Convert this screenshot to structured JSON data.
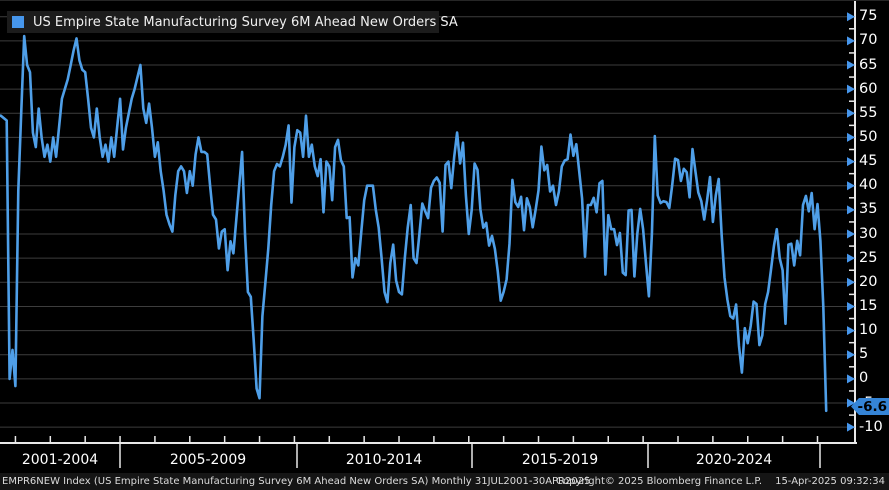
{
  "legend": {
    "label": "US Empire State Manufacturing Survey 6M Ahead New Orders SA",
    "swatch_color": "#4696ec"
  },
  "y_axis": {
    "ticks": [
      75,
      70,
      65,
      60,
      55,
      50,
      45,
      40,
      35,
      30,
      25,
      20,
      15,
      10,
      5,
      0,
      -5,
      -10
    ],
    "minor_tick_step": 2.5,
    "current_value_label": "-6.6"
  },
  "x_axis": {
    "period_labels": [
      "2001-2004",
      "2005-2009",
      "2010-2014",
      "2015-2019",
      "2020-2024"
    ]
  },
  "footer": {
    "left": "EMPR6NEW Index (US Empire State Manufacturing Survey 6M Ahead New Orders SA)  Monthly 31JUL2001-30APR2025",
    "center": "Copyright© 2025 Bloomberg Finance L.P.",
    "right": "15-Apr-2025 09:32:34"
  },
  "colors": {
    "line": "#4f9fe8",
    "tag_background": "#3584d6",
    "grid": "#3d3d3d",
    "axis": "#e8e8e8",
    "arrow": "#4696ec"
  },
  "chart_data": {
    "type": "line",
    "title": "US Empire State Manufacturing Survey 6M Ahead New Orders SA",
    "ticker": "EMPR6NEW Index",
    "frequency": "monthly",
    "x_start": "2001-07",
    "x_end": "2025-04",
    "ylim": [
      -10,
      75
    ],
    "grid": "horizontal",
    "legend_position": "top-left",
    "last_value": -6.6,
    "series": [
      {
        "name": "US Empire State Manufacturing Survey 6M Ahead New Orders SA",
        "values": [
          54.5,
          54.5,
          54,
          53.5,
          0,
          6,
          -1.5,
          39,
          55,
          71,
          65,
          63.5,
          51,
          48,
          56,
          50,
          46,
          48.5,
          45,
          50,
          46,
          52,
          58,
          60,
          62,
          65,
          68,
          70.5,
          66,
          64,
          63.5,
          58,
          52,
          50,
          56,
          50,
          46,
          48.5,
          45,
          50,
          46,
          52,
          58,
          47.5,
          52,
          55,
          58,
          60,
          62.5,
          65,
          56,
          53,
          57,
          52,
          46,
          49,
          43,
          39,
          34,
          32,
          30.5,
          38,
          43,
          44,
          43,
          38.5,
          43,
          40,
          46.5,
          50,
          47,
          47,
          46.5,
          40,
          34,
          33,
          27,
          30.5,
          31,
          22.5,
          28.5,
          26,
          33,
          40,
          47,
          30,
          18,
          17,
          8,
          -2,
          -4,
          13,
          20,
          27,
          36,
          43,
          44.5,
          44,
          46,
          48.5,
          52.5,
          36.5,
          48,
          51.5,
          51,
          46,
          54.5,
          46,
          48.5,
          44,
          42,
          45.5,
          34.5,
          45,
          44,
          37,
          48,
          49.5,
          45.3,
          44,
          33.3,
          33.5,
          21,
          25,
          23.5,
          30.5,
          37,
          40,
          40,
          40,
          35,
          31.3,
          25,
          18,
          15.9,
          24,
          27.8,
          20.4,
          18,
          17.5,
          25,
          31.3,
          36,
          25,
          24,
          30,
          36.3,
          34.7,
          33.3,
          39.6,
          41,
          41.7,
          40.6,
          30.5,
          44.3,
          45,
          39.5,
          46,
          51,
          44.6,
          48.9,
          38,
          30,
          35,
          44.6,
          43.3,
          35.1,
          31.3,
          32.3,
          27.6,
          29.6,
          26.9,
          22.2,
          16.2,
          18,
          20.6,
          28,
          41.2,
          36.6,
          35.6,
          37.7,
          30.8,
          37.4,
          35.6,
          31.4,
          35,
          39,
          48.1,
          43.2,
          44.3,
          38.8,
          40,
          36,
          38.8,
          44,
          45.2,
          45.5,
          50.6,
          46.2,
          48.6,
          43,
          37.3,
          25.3,
          36,
          36,
          37.5,
          34.5,
          40.5,
          41,
          21.6,
          33.9,
          31,
          31,
          27.7,
          30.2,
          22,
          21.5,
          34.9,
          35,
          21.2,
          30,
          35.2,
          31,
          23.9,
          17.1,
          30,
          50.3,
          38,
          36.4,
          36.8,
          36.6,
          35.4,
          40.1,
          45.6,
          45.3,
          41,
          43.5,
          42.8,
          37.6,
          47.6,
          43,
          38.6,
          36.8,
          33,
          37,
          41.8,
          32.5,
          38,
          41.4,
          30,
          21,
          16.4,
          13,
          12.5,
          15.4,
          6.8,
          1.3,
          10.5,
          7.4,
          11,
          16,
          15.5,
          7,
          9,
          15.5,
          18,
          22.6,
          27.5,
          31,
          25,
          22.5,
          11.4,
          27.8,
          28,
          23.5,
          28.6,
          25.6,
          36,
          37.9,
          34.7,
          38.5,
          31,
          36.2,
          28.6,
          15,
          -6.6
        ]
      }
    ]
  }
}
